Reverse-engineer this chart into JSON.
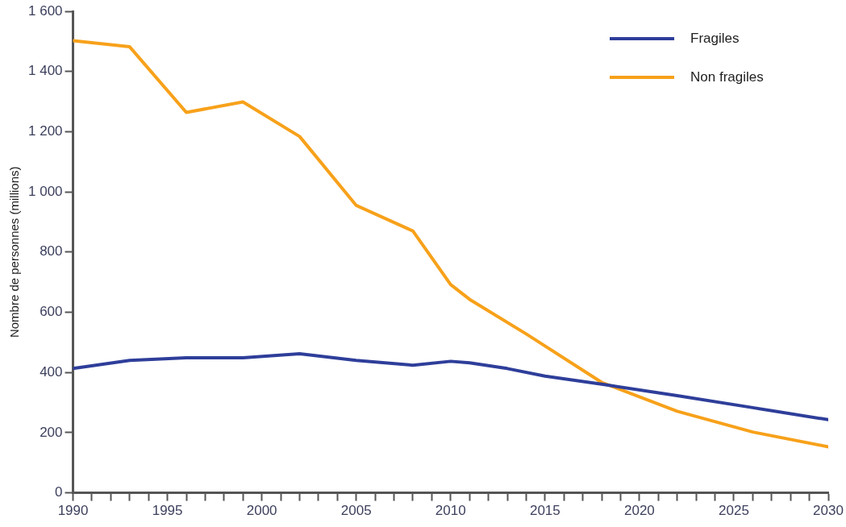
{
  "chart_data": {
    "type": "line",
    "ylabel": "Nombre de personnes (millions)",
    "xlim": [
      1990,
      2030
    ],
    "xticks": [
      1990,
      {
        "value": 1991,
        "label": null
      },
      {
        "value": 1992,
        "label": null
      },
      {
        "value": 1993,
        "label": null
      },
      {
        "value": 1994,
        "label": null
      },
      1995,
      {
        "value": 1996,
        "label": null
      },
      {
        "value": 1997,
        "label": null
      },
      {
        "value": 1998,
        "label": null
      },
      {
        "value": 1999,
        "label": null
      },
      2000,
      {
        "value": 2001,
        "label": null
      },
      {
        "value": 2002,
        "label": null
      },
      {
        "value": 2003,
        "label": null
      },
      {
        "value": 2004,
        "label": null
      },
      2005,
      {
        "value": 2006,
        "label": null
      },
      {
        "value": 2007,
        "label": null
      },
      {
        "value": 2008,
        "label": null
      },
      {
        "value": 2009,
        "label": null
      },
      2010,
      {
        "value": 2011,
        "label": null
      },
      {
        "value": 2012,
        "label": null
      },
      {
        "value": 2013,
        "label": null
      },
      {
        "value": 2014,
        "label": null
      },
      2015,
      {
        "value": 2016,
        "label": null
      },
      {
        "value": 2017,
        "label": null
      },
      {
        "value": 2018,
        "label": null
      },
      {
        "value": 2019,
        "label": null
      },
      2020,
      {
        "value": 2021,
        "label": null
      },
      {
        "value": 2022,
        "label": null
      },
      {
        "value": 2023,
        "label": null
      },
      {
        "value": 2024,
        "label": null
      },
      2025,
      {
        "value": 2026,
        "label": null
      },
      {
        "value": 2027,
        "label": null
      },
      {
        "value": 2028,
        "label": null
      },
      {
        "value": 2029,
        "label": null
      },
      2030
    ],
    "ylim": [
      0,
      1600
    ],
    "yticks": [
      0,
      200,
      400,
      600,
      800,
      {
        "value": 1000,
        "label": "1 000"
      },
      {
        "value": 1200,
        "label": "1 200"
      },
      {
        "value": 1400,
        "label": "1 400"
      },
      {
        "value": 1600,
        "label": "1 600"
      }
    ],
    "grid": false,
    "legend": "top right",
    "marker": "none",
    "line_style": "solid",
    "series": [
      {
        "name": "Fragiles",
        "color": "#2e3e9a",
        "x": [
          1990,
          1993,
          1996,
          1999,
          2002,
          2005,
          2008,
          2010,
          2011,
          2013,
          2015,
          2018,
          2022,
          2026,
          2030
        ],
        "values": [
          413,
          440,
          449,
          449,
          462,
          440,
          424,
          437,
          432,
          413,
          388,
          361,
          323,
          283,
          243
        ]
      },
      {
        "name": "Non fragiles",
        "color": "#f7a11a",
        "x": [
          1990,
          1993,
          1996,
          1999,
          2002,
          2005,
          2008,
          2010,
          2011,
          2014,
          2018,
          2022,
          2026,
          2030
        ],
        "values": [
          1502,
          1482,
          1264,
          1299,
          1184,
          955,
          870,
          692,
          643,
          528,
          367,
          271,
          202,
          153
        ]
      }
    ]
  }
}
